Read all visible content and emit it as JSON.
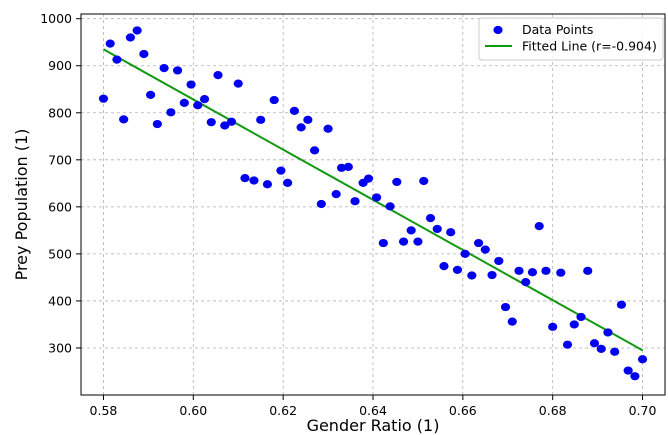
{
  "chart_data": {
    "type": "scatter",
    "xlabel": "Gender Ratio (1)",
    "ylabel": "Prey Population (1)",
    "xlim": [
      0.575,
      0.705
    ],
    "ylim": [
      200,
      1010
    ],
    "xticks": [
      0.58,
      0.6,
      0.62,
      0.64,
      0.66,
      0.68,
      0.7
    ],
    "xtick_labels": [
      "0.58",
      "0.60",
      "0.62",
      "0.64",
      "0.66",
      "0.68",
      "0.70"
    ],
    "yticks": [
      300,
      400,
      500,
      600,
      700,
      800,
      900,
      1000
    ],
    "ytick_labels": [
      "300",
      "400",
      "500",
      "600",
      "700",
      "800",
      "900",
      "1000"
    ],
    "grid": true,
    "legend": {
      "placement": "upper-right",
      "entries": [
        "Data Points",
        "Fitted Line (r=-0.904)"
      ]
    },
    "colors": {
      "points": "#0000ee",
      "line": "#119911"
    },
    "series": [
      {
        "name": "Data Points",
        "kind": "scatter",
        "points": [
          [
            0.58,
            830
          ],
          [
            0.5815,
            947
          ],
          [
            0.583,
            913
          ],
          [
            0.5845,
            786
          ],
          [
            0.586,
            960
          ],
          [
            0.5875,
            975
          ],
          [
            0.589,
            925
          ],
          [
            0.5905,
            838
          ],
          [
            0.592,
            776
          ],
          [
            0.5935,
            895
          ],
          [
            0.595,
            801
          ],
          [
            0.5965,
            890
          ],
          [
            0.598,
            821
          ],
          [
            0.5995,
            860
          ],
          [
            0.601,
            816
          ],
          [
            0.6025,
            829
          ],
          [
            0.604,
            780
          ],
          [
            0.6055,
            880
          ],
          [
            0.607,
            773
          ],
          [
            0.6085,
            781
          ],
          [
            0.61,
            862
          ],
          [
            0.6115,
            661
          ],
          [
            0.6135,
            656
          ],
          [
            0.615,
            785
          ],
          [
            0.6165,
            648
          ],
          [
            0.618,
            827
          ],
          [
            0.6195,
            677
          ],
          [
            0.621,
            651
          ],
          [
            0.6225,
            804
          ],
          [
            0.624,
            769
          ],
          [
            0.6255,
            785
          ],
          [
            0.627,
            720
          ],
          [
            0.6285,
            606
          ],
          [
            0.63,
            766
          ],
          [
            0.6318,
            627
          ],
          [
            0.633,
            683
          ],
          [
            0.6345,
            685
          ],
          [
            0.636,
            612
          ],
          [
            0.6378,
            651
          ],
          [
            0.639,
            660
          ],
          [
            0.6408,
            620
          ],
          [
            0.6423,
            523
          ],
          [
            0.6438,
            601
          ],
          [
            0.6453,
            653
          ],
          [
            0.6468,
            526
          ],
          [
            0.6485,
            550
          ],
          [
            0.65,
            526
          ],
          [
            0.6513,
            655
          ],
          [
            0.6528,
            576
          ],
          [
            0.6543,
            553
          ],
          [
            0.6558,
            474
          ],
          [
            0.6573,
            546
          ],
          [
            0.6588,
            466
          ],
          [
            0.6605,
            500
          ],
          [
            0.662,
            454
          ],
          [
            0.6635,
            523
          ],
          [
            0.665,
            509
          ],
          [
            0.6665,
            455
          ],
          [
            0.668,
            485
          ],
          [
            0.6695,
            387
          ],
          [
            0.671,
            356
          ],
          [
            0.6725,
            464
          ],
          [
            0.674,
            440
          ],
          [
            0.6755,
            461
          ],
          [
            0.677,
            559
          ],
          [
            0.6785,
            464
          ],
          [
            0.68,
            345
          ],
          [
            0.6818,
            460
          ],
          [
            0.6833,
            307
          ],
          [
            0.6848,
            350
          ],
          [
            0.6863,
            366
          ],
          [
            0.6878,
            464
          ],
          [
            0.6893,
            310
          ],
          [
            0.6908,
            298
          ],
          [
            0.6923,
            333
          ],
          [
            0.6938,
            292
          ],
          [
            0.6953,
            392
          ],
          [
            0.6968,
            252
          ],
          [
            0.6983,
            240
          ],
          [
            0.7,
            276
          ]
        ]
      },
      {
        "name": "Fitted Line (r=-0.904)",
        "kind": "line",
        "points": [
          [
            0.58,
            935
          ],
          [
            0.7,
            295
          ]
        ]
      }
    ]
  }
}
